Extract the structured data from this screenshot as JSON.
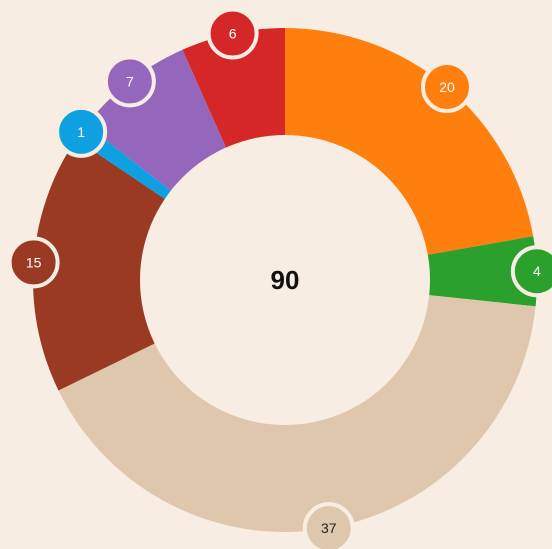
{
  "chart_data": {
    "type": "donut",
    "values": [
      20,
      4,
      37,
      15,
      1,
      7,
      6
    ],
    "colors": [
      "#ff7f0e",
      "#2ca02c",
      "#dfc7ad",
      "#9a3a22",
      "#0ea0e0",
      "#9467bd",
      "#d62728"
    ],
    "label_text_colors": [
      "#ffffff",
      "#ffffff",
      "#222222",
      "#ffffff",
      "#ffffff",
      "#ffffff",
      "#ffffff"
    ],
    "total": 90
  }
}
